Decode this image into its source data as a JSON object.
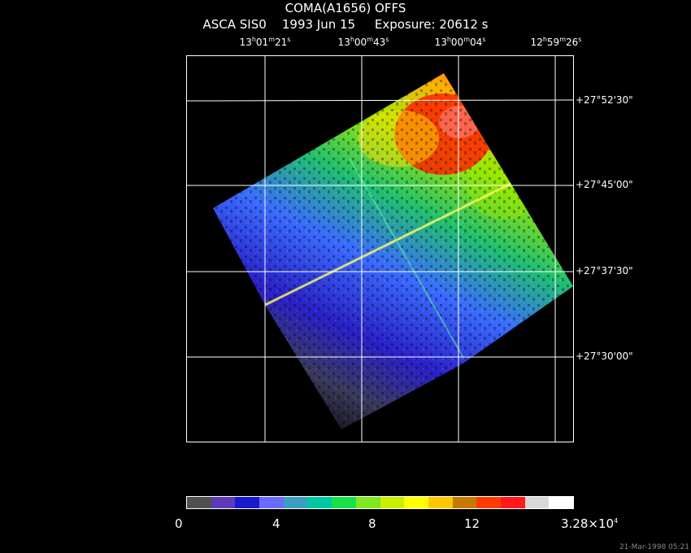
{
  "title": {
    "line1": "COMA(A1656) OFFS",
    "line2": "ASCA SIS0    1993 Jun 15     Exposure: 20612 s"
  },
  "ra_ticks": [
    {
      "h": "13",
      "m": "01",
      "s": "21"
    },
    {
      "h": "13",
      "m": "00",
      "s": "43"
    },
    {
      "h": "13",
      "m": "00",
      "s": "04"
    },
    {
      "h": "12",
      "m": "59",
      "s": "26"
    }
  ],
  "dec_ticks": [
    "+27°52'30\"",
    "+27°45'00\"",
    "+27°37'30\"",
    "+27°30'00\""
  ],
  "colorbar": {
    "labels": [
      "0",
      "4",
      "8",
      "12",
      "3.28×10"
    ],
    "exponent": "4",
    "colors": [
      "#505050",
      "#5c3ab8",
      "#1a1ad0",
      "#6a6aff",
      "#3aa0c0",
      "#00c8a0",
      "#19e04a",
      "#7ee81e",
      "#c8f000",
      "#ffff00",
      "#ffc800",
      "#c87800",
      "#ff3c00",
      "#ff1a1a",
      "#d8d8d8",
      "#ffffff"
    ]
  },
  "stamp": "21-Mar-1998 05:21"
}
